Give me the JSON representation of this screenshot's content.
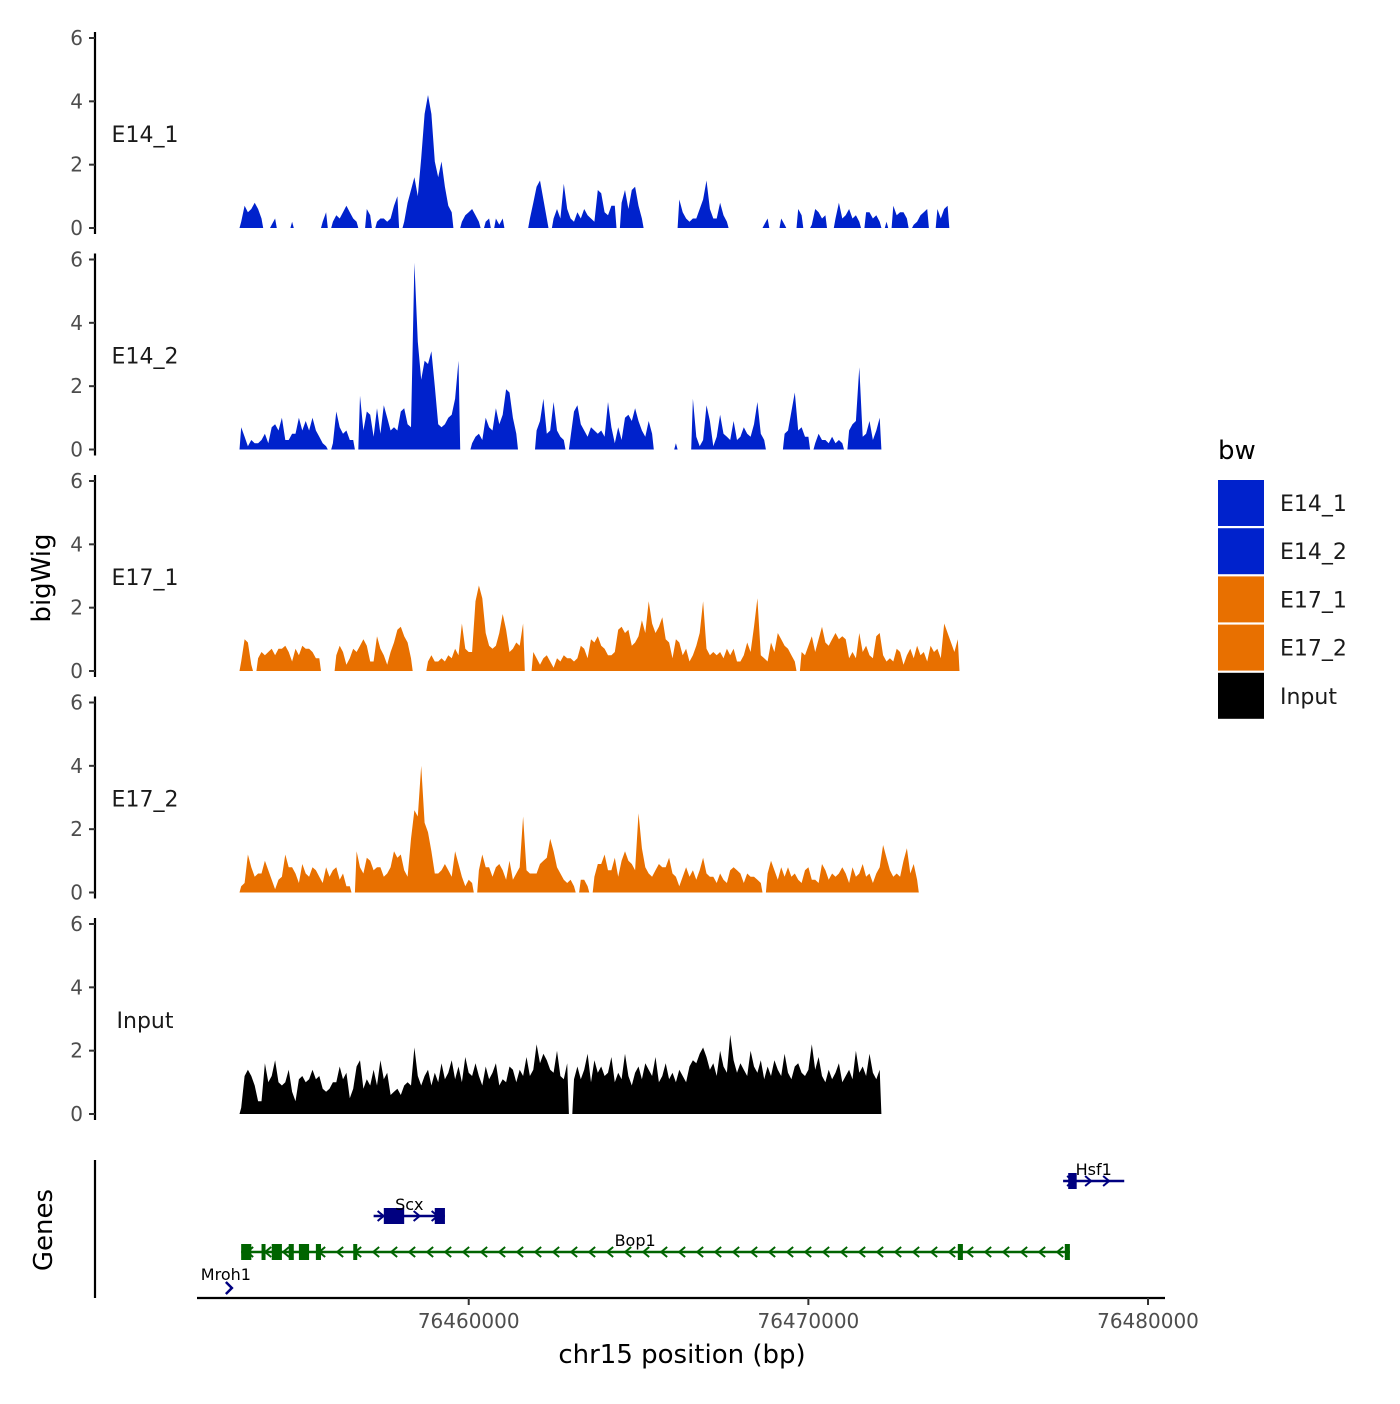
{
  "chart_data": {
    "type": "area",
    "chromosome": "chr15",
    "xlabel": "chr15 position (bp)",
    "ylabel": "bigWig",
    "genes_label": "Genes",
    "xlim": [
      76452000,
      76480500
    ],
    "x_ticks": [
      76460000,
      76470000,
      76480000
    ],
    "x_tick_labels": [
      "76460000",
      "76470000",
      "76480000"
    ],
    "ylim": [
      0,
      6
    ],
    "y_ticks": [
      0,
      2,
      4,
      6
    ],
    "y_tick_labels": [
      "0",
      "2",
      "4",
      "6"
    ],
    "track_start": 76453300,
    "track_step": 100,
    "tracks": [
      {
        "name": "E14_1",
        "color": "#0022cc",
        "values": [
          0.2,
          0.7,
          0.5,
          0.6,
          0.8,
          0.6,
          0.3,
          0,
          0,
          0.1,
          0.3,
          0,
          0,
          0,
          0,
          0.2,
          0,
          0,
          0,
          0,
          0,
          0,
          0,
          0,
          0.2,
          0.5,
          0,
          0.2,
          0.4,
          0.3,
          0.5,
          0.7,
          0.5,
          0.3,
          0.2,
          0,
          0,
          0.6,
          0.4,
          0,
          0.2,
          0.3,
          0.3,
          0.2,
          0.3,
          0.7,
          1.0,
          0,
          0.2,
          0.8,
          1.2,
          1.6,
          1.0,
          2.2,
          3.6,
          4.2,
          3.6,
          2.1,
          1.6,
          2.1,
          1.3,
          0.7,
          0.5,
          0,
          0,
          0.2,
          0.4,
          0.5,
          0.6,
          0.4,
          0.2,
          0,
          0.2,
          0.3,
          0,
          0.3,
          0.1,
          0.3,
          0,
          0,
          0,
          0,
          0,
          0,
          0,
          0.3,
          0.8,
          1.3,
          1.5,
          0.9,
          0.3,
          0,
          0.3,
          0.6,
          0.3,
          1.4,
          0.6,
          0.3,
          0.2,
          0.5,
          0.3,
          0.6,
          0.4,
          0.3,
          0.2,
          1.2,
          1.1,
          0.5,
          0.4,
          0.7,
          0.7,
          0,
          0.8,
          1.2,
          0.6,
          1.2,
          1.3,
          0.7,
          0.3,
          0,
          0,
          0,
          0,
          0,
          0,
          0,
          0,
          0,
          0,
          0.9,
          0.5,
          0.3,
          0.2,
          0.3,
          0.3,
          0.6,
          0.9,
          1.5,
          0.6,
          0.3,
          0.3,
          0.8,
          0.4,
          0.2,
          0,
          0,
          0,
          0,
          0,
          0,
          0,
          0,
          0,
          0,
          0.1,
          0.3,
          0,
          0,
          0,
          0.3,
          0.1,
          0,
          0,
          0,
          0.6,
          0.4,
          0,
          0,
          0.1,
          0.6,
          0.5,
          0.3,
          0.4,
          0,
          0,
          0.3,
          0.8,
          0.3,
          0.4,
          0.6,
          0.3,
          0.4,
          0.2,
          0,
          0.5,
          0.5,
          0.3,
          0.4,
          0.2,
          0,
          0.2,
          0,
          0.7,
          0.4,
          0.5,
          0.5,
          0.3,
          0,
          0.1,
          0.2,
          0.4,
          0.5,
          0.6,
          0,
          0,
          0.6,
          0.3,
          0.6,
          0.7
        ]
      },
      {
        "name": "E14_2",
        "color": "#0022cc",
        "values": [
          0.7,
          0.4,
          0.1,
          0.3,
          0.2,
          0.2,
          0.3,
          0.5,
          0.2,
          0.7,
          0.8,
          0.6,
          1.0,
          0.3,
          0.3,
          0.5,
          0.5,
          1.0,
          0.6,
          0.9,
          0.6,
          1.0,
          0.6,
          0.4,
          0.2,
          0.1,
          0,
          0.2,
          1.2,
          0.7,
          0.5,
          0.6,
          0.3,
          0.3,
          0,
          1.7,
          0.6,
          1.2,
          1.1,
          0.4,
          1.3,
          0.5,
          1.4,
          1.0,
          0.6,
          0.7,
          0.6,
          1.2,
          1.3,
          0.8,
          0.7,
          5.9,
          3.4,
          2.2,
          2.8,
          2.7,
          3.1,
          2.0,
          0.8,
          0.7,
          0.8,
          1.0,
          1.1,
          1.6,
          2.8,
          0,
          0,
          0,
          0.2,
          0.4,
          0.5,
          0.3,
          1.0,
          0.7,
          0.6,
          1.3,
          0.8,
          1.1,
          1.9,
          1.8,
          1.0,
          0.5,
          0,
          0,
          0,
          0,
          0,
          0.6,
          0.9,
          1.6,
          0.5,
          0.6,
          1.5,
          0.6,
          0.4,
          0.3,
          0,
          0.4,
          1.2,
          1.4,
          0.8,
          0.6,
          0.4,
          0.7,
          0.6,
          0.5,
          0.6,
          0.4,
          1.5,
          0.7,
          0.2,
          0.7,
          0.3,
          1.0,
          1.1,
          0.9,
          1.3,
          0.9,
          0.6,
          0.4,
          0.9,
          0.5,
          0,
          0,
          0,
          0,
          0,
          0,
          0.2,
          0,
          0,
          0,
          0,
          1.6,
          0.4,
          0.1,
          0.3,
          1.4,
          0.9,
          0.1,
          0.4,
          1.1,
          0.5,
          0.4,
          0.3,
          0.9,
          0.3,
          0.4,
          0.7,
          0.5,
          0.4,
          0.8,
          1.5,
          0.5,
          0.3,
          0,
          0,
          0,
          0,
          0,
          0.5,
          0.6,
          1.2,
          1.8,
          0.6,
          0.7,
          0.4,
          0.4,
          0,
          0.2,
          0.5,
          0.3,
          0.3,
          0.2,
          0.4,
          0.2,
          0.3,
          0.2,
          0,
          0.6,
          0.8,
          0.9,
          2.6,
          0.4,
          0.5,
          0.9,
          0.3,
          0.6,
          1.0
        ]
      },
      {
        "name": "E17_1",
        "color": "#e87000",
        "values": [
          0.3,
          1.0,
          0.9,
          0.2,
          0,
          0.4,
          0.6,
          0.5,
          0.6,
          0.7,
          0.5,
          0.7,
          0.7,
          0.8,
          0.6,
          0.3,
          0.7,
          0.5,
          0.8,
          0.7,
          0.7,
          0.6,
          0.4,
          0.4,
          0,
          0,
          0,
          0,
          0.5,
          0.8,
          0.6,
          0.2,
          0.4,
          0.7,
          0.6,
          0.8,
          1.0,
          0.8,
          0.3,
          0.3,
          1.1,
          0.7,
          0.5,
          0.2,
          0.6,
          0.9,
          1.3,
          1.4,
          1.1,
          0.9,
          0.4,
          0,
          0,
          0,
          0,
          0.3,
          0.5,
          0.3,
          0.3,
          0.4,
          0.3,
          0.5,
          0.4,
          0.7,
          0.5,
          1.5,
          0.7,
          0.6,
          0.6,
          2.2,
          2.7,
          2.3,
          1.2,
          0.8,
          0.7,
          0.8,
          1.2,
          1.8,
          1.3,
          0.6,
          0.7,
          0.9,
          0.8,
          1.5,
          0,
          0,
          0.6,
          0.4,
          0.2,
          0.4,
          0.5,
          0.3,
          0.1,
          0.4,
          0.3,
          0.5,
          0.4,
          0.4,
          0.3,
          0.4,
          0.8,
          0.7,
          0.4,
          1.0,
          0.9,
          1.1,
          0.8,
          0.7,
          0.5,
          0.5,
          0.6,
          1.3,
          1.4,
          1.2,
          1.3,
          0.8,
          0.9,
          1.1,
          1.6,
          1.2,
          2.2,
          1.5,
          1.2,
          1.4,
          1.7,
          1.0,
          0.9,
          0.4,
          1.0,
          0.9,
          0.5,
          0.7,
          0.3,
          0.5,
          0.8,
          1.2,
          2.2,
          0.7,
          0.5,
          0.6,
          0.5,
          0.6,
          0.4,
          0.7,
          0.5,
          0.7,
          0.3,
          0.3,
          0.5,
          0.9,
          0.6,
          1.4,
          2.3,
          0.5,
          0.4,
          0.3,
          0.9,
          0.6,
          1.2,
          1.0,
          0.8,
          0.7,
          0.5,
          0.3,
          0,
          0.6,
          0.5,
          0.8,
          1.1,
          0.6,
          1.0,
          1.4,
          0.9,
          0.8,
          1.0,
          1.2,
          1.0,
          1.1,
          1.0,
          0.4,
          0.6,
          0.4,
          1.2,
          0.6,
          0.8,
          0.5,
          0.4,
          1.1,
          1.2,
          0.5,
          0.3,
          0.4,
          0.3,
          0.7,
          0.6,
          0.2,
          0.5,
          0.7,
          0.4,
          0.8,
          0.5,
          0.6,
          0.3,
          0.8,
          0.6,
          0.7,
          0.4,
          1.5,
          1.2,
          0.9,
          0.6,
          1.0
        ]
      },
      {
        "name": "E17_2",
        "color": "#e87000",
        "values": [
          0.2,
          0.3,
          1.2,
          0.8,
          0.5,
          0.6,
          0.6,
          1.0,
          0.7,
          0.4,
          0.1,
          0.4,
          0.5,
          1.2,
          0.8,
          0.8,
          0.6,
          0.3,
          0.9,
          0.6,
          0.5,
          0.8,
          0.7,
          0.5,
          0.3,
          0.8,
          0.5,
          0.7,
          0.8,
          0.4,
          0.6,
          0.2,
          0.2,
          0,
          1.3,
          0.8,
          0.6,
          1.1,
          1.0,
          0.7,
          0.8,
          0.8,
          0.5,
          0.6,
          0.8,
          1.3,
          1.1,
          1.2,
          0.7,
          0.5,
          1.7,
          2.6,
          2.4,
          4.0,
          2.2,
          1.9,
          1.3,
          0.6,
          0.6,
          0.7,
          0.9,
          0.7,
          0.5,
          1.3,
          0.9,
          0.5,
          0.2,
          0.4,
          0.3,
          0,
          0.7,
          1.2,
          0.8,
          0.8,
          0.5,
          0.8,
          0.9,
          0.7,
          0.4,
          1.0,
          0.4,
          0.6,
          0.8,
          2.4,
          0.7,
          0.6,
          0.6,
          0.6,
          0.9,
          1.0,
          1.1,
          1.7,
          1.3,
          0.8,
          0.6,
          0.4,
          0.3,
          0.4,
          0.2,
          0,
          0.4,
          0.4,
          0.2,
          0,
          0.5,
          0.9,
          0.9,
          1.2,
          0.7,
          0.7,
          1.1,
          0.5,
          1.0,
          1.3,
          1.0,
          0.9,
          0.7,
          2.5,
          1.4,
          0.8,
          0.6,
          0.5,
          0.7,
          0.9,
          0.8,
          0.8,
          1.1,
          0.6,
          0.5,
          0.2,
          0.5,
          0.8,
          0.5,
          0.7,
          0.4,
          0.7,
          1.1,
          0.6,
          0.5,
          0.5,
          0.3,
          0.6,
          0.4,
          0.3,
          0.7,
          0.8,
          0.7,
          0.6,
          0.3,
          0.6,
          0.5,
          0.5,
          0.4,
          0.3,
          0,
          0.6,
          1.0,
          0.7,
          0.4,
          0.8,
          0.5,
          0.8,
          0.5,
          0.6,
          0.4,
          0.3,
          0.7,
          0.8,
          0.4,
          0.4,
          0.3,
          0.9,
          0.7,
          0.4,
          0.6,
          0.5,
          0.6,
          0.8,
          0.6,
          0.3,
          0.8,
          0.5,
          0.6,
          0.9,
          0.5,
          0.6,
          0.3,
          0.6,
          0.8,
          1.5,
          1.1,
          0.7,
          0.5,
          0.6,
          0.5,
          1.0,
          1.4,
          0.6,
          0.9,
          0.4
        ]
      },
      {
        "name": "Input",
        "color": "#000000",
        "values": [
          0.2,
          1.2,
          1.4,
          1.2,
          0.9,
          0.4,
          0.4,
          1.6,
          1.0,
          1.2,
          1.7,
          1.0,
          0.9,
          1.0,
          1.4,
          0.7,
          0.4,
          1.1,
          1.2,
          1.0,
          1.1,
          1.4,
          1.1,
          1.2,
          0.8,
          0.7,
          0.8,
          1.0,
          1.0,
          1.5,
          1.1,
          1.3,
          0.5,
          0.8,
          1.5,
          1.7,
          0.8,
          1.1,
          0.9,
          1.4,
          0.9,
          1.7,
          1.1,
          1.3,
          0.6,
          0.7,
          0.8,
          0.6,
          0.9,
          1.0,
          0.9,
          2.1,
          1.2,
          0.9,
          1.2,
          1.4,
          0.9,
          1.3,
          1.0,
          1.6,
          1.1,
          1.3,
          1.7,
          1.1,
          1.5,
          1.0,
          1.8,
          1.3,
          1.2,
          1.6,
          1.2,
          0.9,
          1.5,
          1.1,
          1.3,
          1.6,
          0.9,
          1.1,
          1.0,
          1.5,
          1.4,
          1.0,
          1.4,
          1.2,
          1.8,
          1.2,
          1.4,
          2.2,
          1.6,
          1.9,
          1.7,
          1.4,
          1.3,
          2.0,
          1.2,
          1.1,
          1.6,
          0,
          1.1,
          1.5,
          1.1,
          1.4,
          1.9,
          1.0,
          1.7,
          1.3,
          1.5,
          1.2,
          1.3,
          1.8,
          1.0,
          1.3,
          1.1,
          1.9,
          1.2,
          0.9,
          1.3,
          1.5,
          1.1,
          1.6,
          1.4,
          1.2,
          1.8,
          1.0,
          1.2,
          1.6,
          1.1,
          1.3,
          1.0,
          1.4,
          1.2,
          1.0,
          1.5,
          1.7,
          1.6,
          1.9,
          2.1,
          1.8,
          1.4,
          1.6,
          1.2,
          2.0,
          1.5,
          1.3,
          2.5,
          1.7,
          1.3,
          1.6,
          1.4,
          1.2,
          2.0,
          1.5,
          1.3,
          1.7,
          1.1,
          1.5,
          1.2,
          1.7,
          1.4,
          1.2,
          1.9,
          1.3,
          1.1,
          1.5,
          1.6,
          1.3,
          1.2,
          1.4,
          2.2,
          1.4,
          1.8,
          1.2,
          1.0,
          1.4,
          1.1,
          1.3,
          1.6,
          1.0,
          1.2,
          1.4,
          1.1,
          2.0,
          1.3,
          1.5,
          1.2,
          1.9,
          1.3,
          1.1,
          1.4
        ]
      }
    ],
    "genes": [
      {
        "name": "Mroh1",
        "color": "#000080",
        "start": 76452850,
        "end": 76453400,
        "strand": "+",
        "exons": [],
        "arrow_only": true
      },
      {
        "name": "Scx",
        "color": "#000080",
        "start": 76457200,
        "end": 76459300,
        "strand": "+",
        "exons": [
          [
            76457500,
            76458100
          ],
          [
            76459000,
            76459300
          ]
        ]
      },
      {
        "name": "Bop1",
        "color": "#006400",
        "start": 76453300,
        "end": 76477700,
        "strand": "-",
        "exons": [
          [
            76453300,
            76453600
          ],
          [
            76453900,
            76454000
          ],
          [
            76454200,
            76454500
          ],
          [
            76454700,
            76454850
          ],
          [
            76455000,
            76455300
          ],
          [
            76455500,
            76455650
          ],
          [
            76456600,
            76456700
          ],
          [
            76474400,
            76474550
          ],
          [
            76477550,
            76477700
          ]
        ]
      },
      {
        "name": "Hsf1",
        "color": "#000080",
        "start": 76477500,
        "end": 76479300,
        "strand": "+",
        "exons": [
          [
            76477650,
            76477900
          ]
        ]
      }
    ],
    "legend": {
      "title": "bw",
      "position": "right",
      "entries": [
        {
          "label": "E14_1",
          "color": "#0022cc"
        },
        {
          "label": "E14_2",
          "color": "#0022cc"
        },
        {
          "label": "E17_1",
          "color": "#e87000"
        },
        {
          "label": "E17_2",
          "color": "#e87000"
        },
        {
          "label": "Input",
          "color": "#000000"
        }
      ]
    }
  }
}
